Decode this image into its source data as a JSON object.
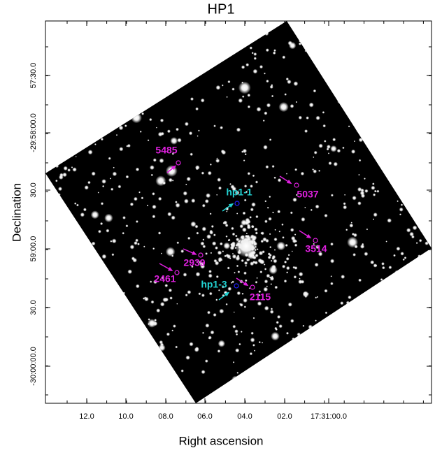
{
  "figure": {
    "title": "HP1",
    "x_label": "Right ascension",
    "y_label": "Declination",
    "x_tick_labels": [
      "12.0",
      "10.0",
      "08.0",
      "06.0",
      "04.0",
      "02.0",
      "17:31:00.0"
    ],
    "y_tick_labels": [
      "57:30.0",
      "-29:58:00.0",
      "30.0",
      "59:00.0",
      "30.0",
      "-30:00:00.0"
    ],
    "annotations": [
      {
        "label": "5485",
        "color": "magenta"
      },
      {
        "label": "5037",
        "color": "magenta"
      },
      {
        "label": "3514",
        "color": "magenta"
      },
      {
        "label": "2939",
        "color": "magenta"
      },
      {
        "label": "2461",
        "color": "magenta"
      },
      {
        "label": "2115",
        "color": "magenta"
      },
      {
        "label": "hp1-1",
        "color": "cyan"
      },
      {
        "label": "hp1-3",
        "color": "cyan"
      }
    ]
  }
}
